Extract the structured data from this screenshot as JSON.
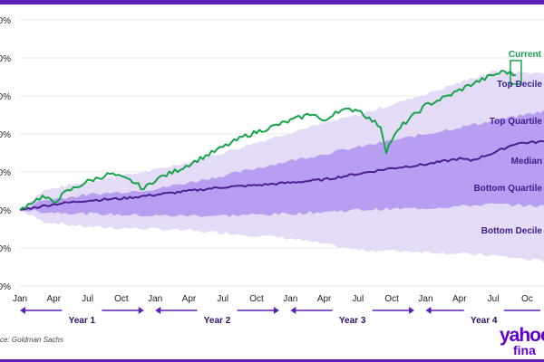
{
  "chart_data": {
    "type": "area",
    "title": "",
    "xlabel": "",
    "ylabel": "",
    "ytick_labels": [
      "0%",
      "0%",
      "0%",
      "0%",
      "0%",
      "0%",
      "0%",
      "0%"
    ],
    "x_month_labels": [
      "Jan",
      "Apr",
      "Jul",
      "Oct",
      "Jan",
      "Apr",
      "Jul",
      "Oct",
      "Jan",
      "Apr",
      "Jul",
      "Oct",
      "Jan",
      "Apr",
      "Jul",
      "Oc"
    ],
    "year_labels": [
      "Year 1",
      "Year 2",
      "Year 3",
      "Year 4"
    ],
    "x_range_months": [
      0,
      46.5
    ],
    "y_level_index_range": [
      -2,
      5
    ],
    "bands": [
      {
        "name": "Top Decile to Bottom Decile",
        "color": "#e4dcf6",
        "points": [
          {
            "month": 0,
            "upper": 0.0,
            "lower": 0.0
          },
          {
            "month": 2,
            "upper": 0.5,
            "lower": -0.3
          },
          {
            "month": 6,
            "upper": 0.75,
            "lower": -0.45
          },
          {
            "month": 12,
            "upper": 1.05,
            "lower": -0.5
          },
          {
            "month": 18,
            "upper": 1.5,
            "lower": -0.6
          },
          {
            "month": 24,
            "upper": 2.05,
            "lower": -0.75
          },
          {
            "month": 30,
            "upper": 2.5,
            "lower": -1.05
          },
          {
            "month": 36,
            "upper": 3.05,
            "lower": -1.1
          },
          {
            "month": 42,
            "upper": 3.65,
            "lower": -1.2
          },
          {
            "month": 46.5,
            "upper": 3.6,
            "lower": -1.35
          }
        ]
      },
      {
        "name": "Top Quartile to Bottom Quartile",
        "color": "#b89ef0",
        "points": [
          {
            "month": 0,
            "upper": 0.0,
            "lower": 0.0
          },
          {
            "month": 2,
            "upper": 0.25,
            "lower": -0.05
          },
          {
            "month": 6,
            "upper": 0.4,
            "lower": -0.1
          },
          {
            "month": 12,
            "upper": 0.55,
            "lower": -0.15
          },
          {
            "month": 18,
            "upper": 0.9,
            "lower": -0.15
          },
          {
            "month": 24,
            "upper": 1.3,
            "lower": -0.1
          },
          {
            "month": 30,
            "upper": 1.65,
            "lower": 0.0
          },
          {
            "month": 36,
            "upper": 2.0,
            "lower": 0.05
          },
          {
            "month": 42,
            "upper": 2.35,
            "lower": 0.15
          },
          {
            "month": 46.5,
            "upper": 2.6,
            "lower": 0.1
          }
        ]
      }
    ],
    "series": [
      {
        "name": "Median",
        "color": "#4c1d95",
        "points": [
          [
            0,
            0.0
          ],
          [
            3,
            0.15
          ],
          [
            6,
            0.25
          ],
          [
            9,
            0.3
          ],
          [
            12,
            0.4
          ],
          [
            15,
            0.5
          ],
          [
            18,
            0.6
          ],
          [
            21,
            0.65
          ],
          [
            24,
            0.72
          ],
          [
            27,
            0.8
          ],
          [
            30,
            0.95
          ],
          [
            33,
            1.1
          ],
          [
            36,
            1.2
          ],
          [
            39,
            1.35
          ],
          [
            40,
            1.3
          ],
          [
            42,
            1.5
          ],
          [
            44,
            1.75
          ],
          [
            46.5,
            1.8
          ]
        ]
      },
      {
        "name": "Current",
        "color": "#16a34a",
        "points": [
          [
            0,
            0.0
          ],
          [
            1,
            0.2
          ],
          [
            2,
            0.35
          ],
          [
            3,
            0.2
          ],
          [
            4,
            0.45
          ],
          [
            6,
            0.75
          ],
          [
            8,
            0.95
          ],
          [
            10,
            0.75
          ],
          [
            11,
            0.55
          ],
          [
            12,
            0.8
          ],
          [
            14,
            1.05
          ],
          [
            16,
            1.35
          ],
          [
            18,
            1.65
          ],
          [
            20,
            1.95
          ],
          [
            22,
            2.15
          ],
          [
            24,
            2.35
          ],
          [
            26,
            2.55
          ],
          [
            27,
            2.3
          ],
          [
            28,
            2.6
          ],
          [
            30,
            2.65
          ],
          [
            31,
            2.4
          ],
          [
            32,
            2.2
          ],
          [
            32.5,
            1.55
          ],
          [
            33,
            1.85
          ],
          [
            34,
            2.25
          ],
          [
            36,
            2.75
          ],
          [
            38,
            3.0
          ],
          [
            40,
            3.3
          ],
          [
            42,
            3.55
          ],
          [
            43,
            3.65
          ],
          [
            44,
            3.55
          ]
        ]
      }
    ],
    "band_labels": [
      "Top Decile",
      "Top Quartile",
      "Median",
      "Bottom Quartile",
      "Bottom Decile"
    ],
    "current_label": "Current",
    "source": "ce: Goldman Sachs",
    "grid": "horizontal",
    "legend": "inline labels at right"
  },
  "branding": {
    "logo_text": "yahoo",
    "logo_sub": "fina",
    "color": "#6001d2"
  }
}
